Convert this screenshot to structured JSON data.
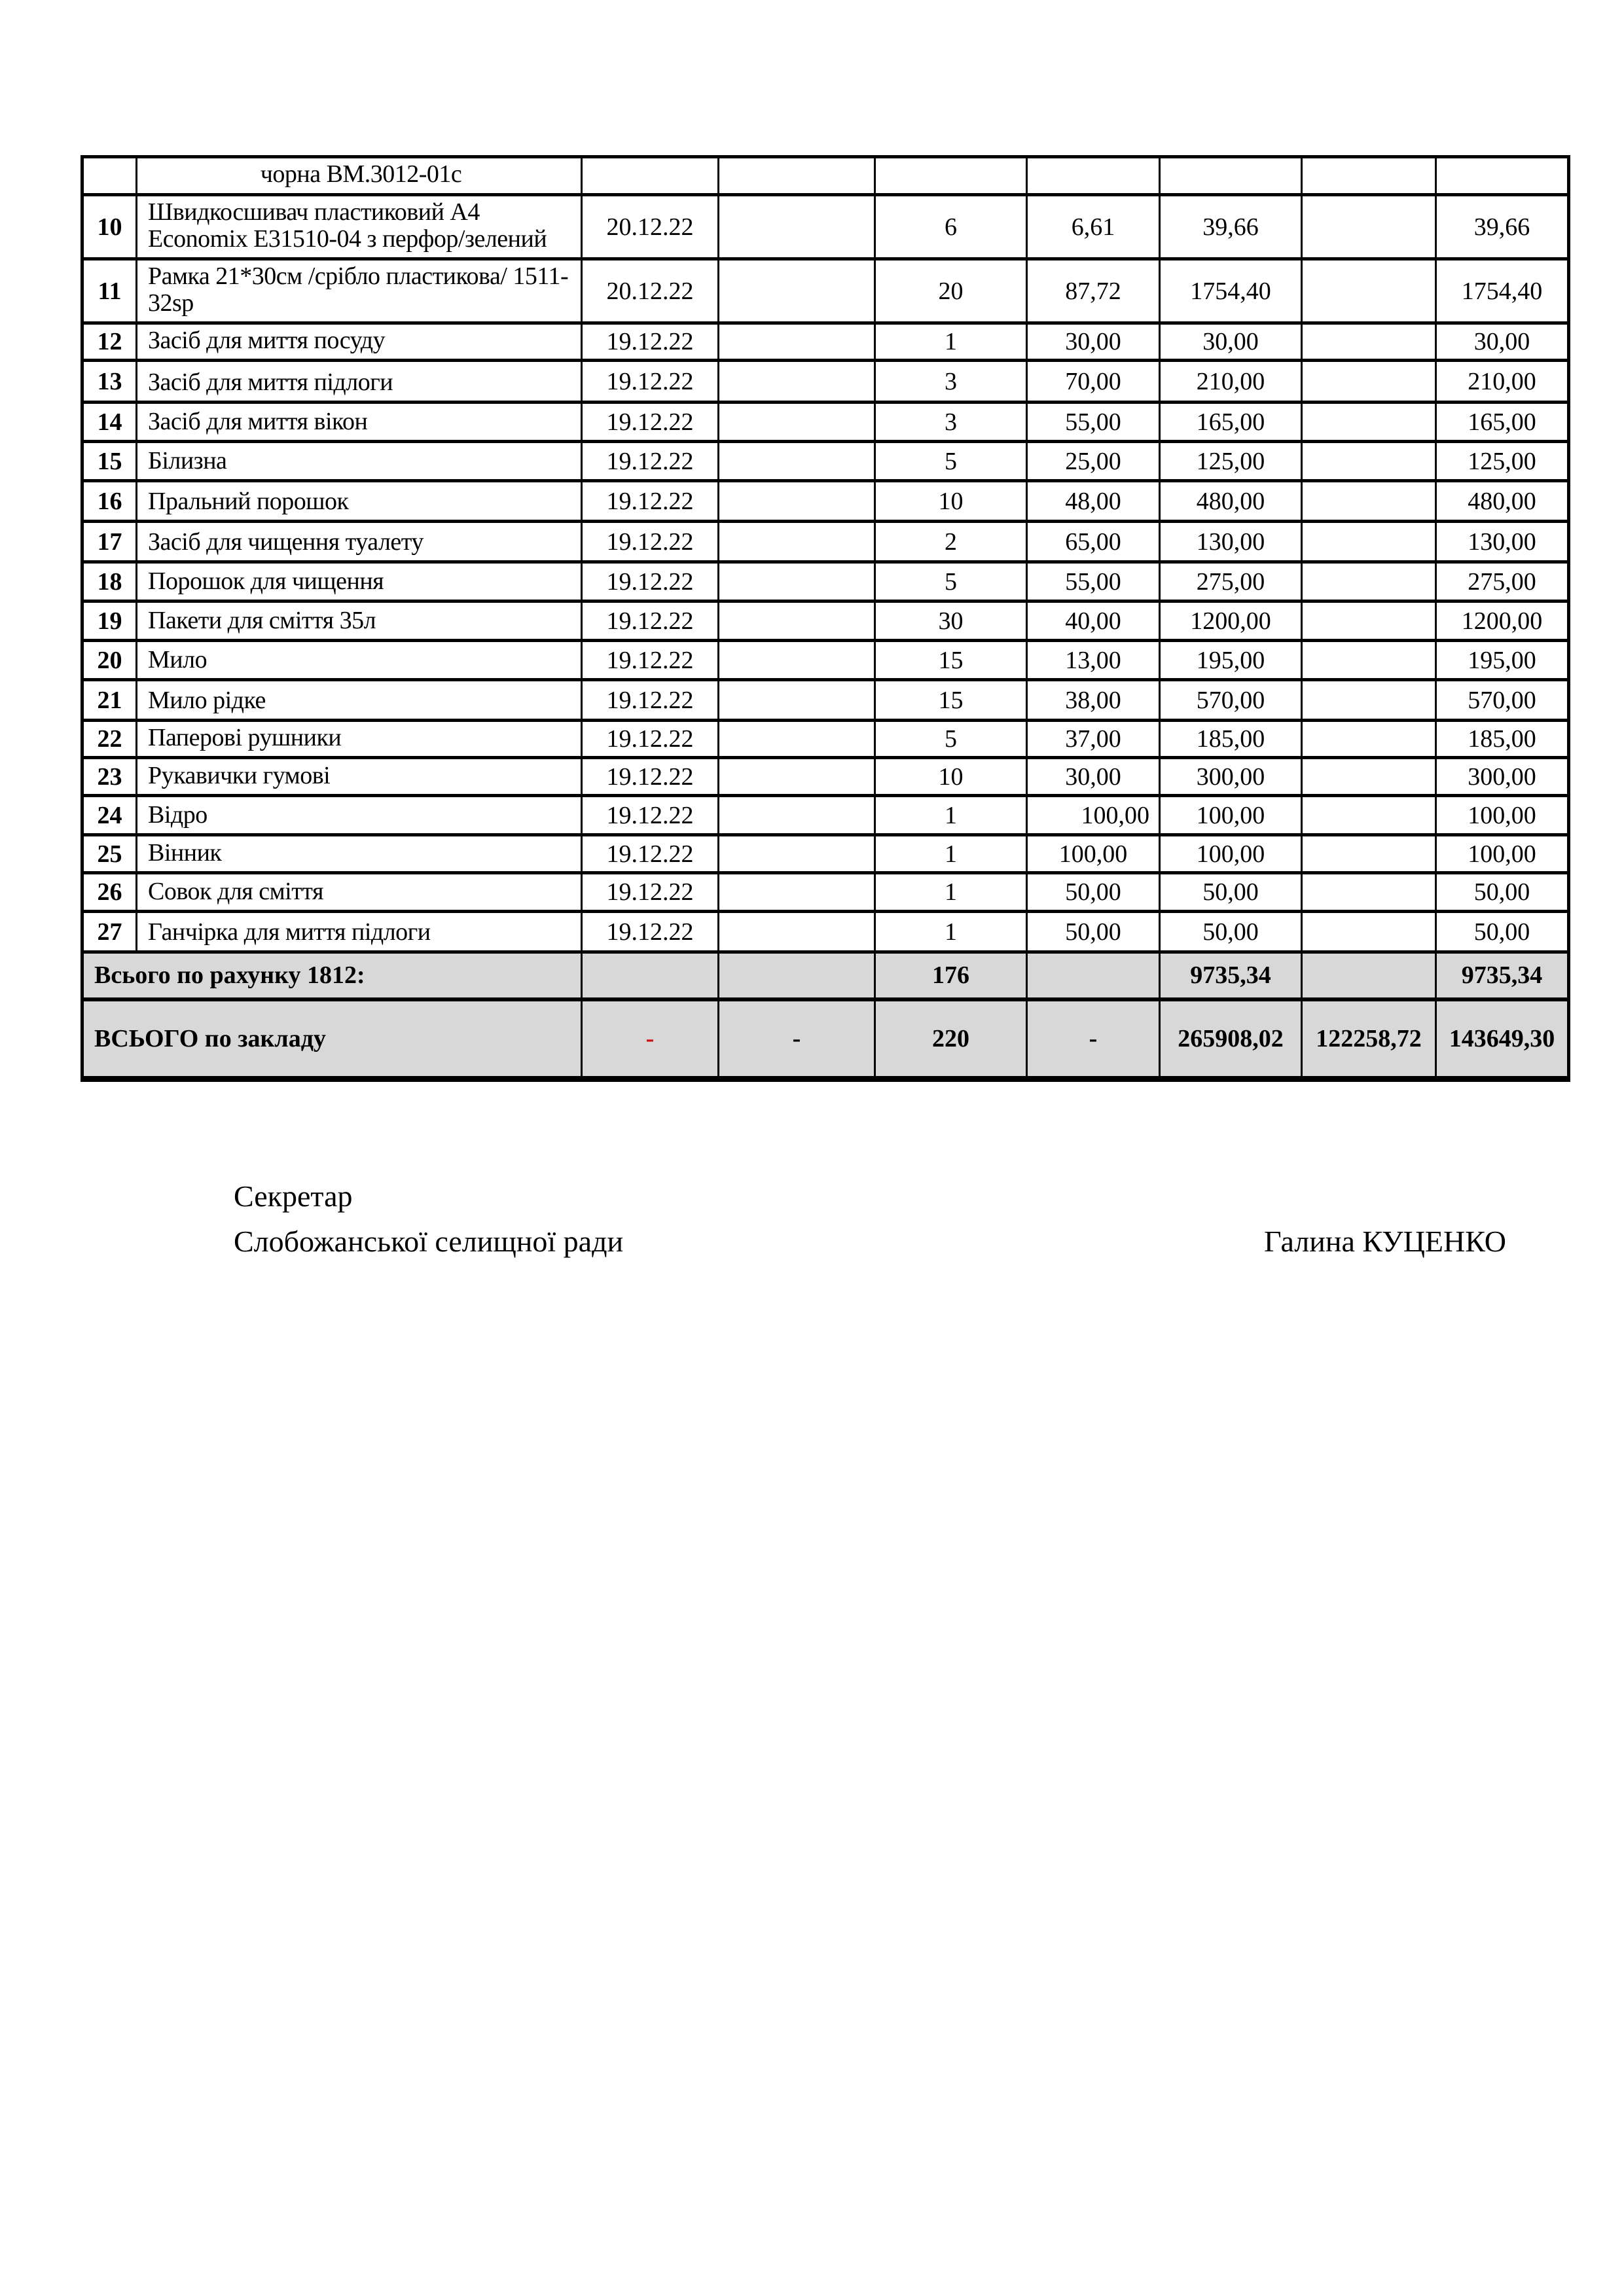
{
  "table": {
    "partial_row": {
      "desc": "чорна ВМ.3012-01с"
    },
    "rows": [
      {
        "num": "10",
        "desc": "Швидкосшивач пластиковий А4 Economix Е31510-04 з перфор/зелений",
        "date": "20.12.22",
        "qty": "6",
        "price": "6,61",
        "sum": "39,66",
        "total": "39,66"
      },
      {
        "num": "11",
        "desc": "Рамка 21*30см /срібло пластикова/ 1511-32sp",
        "date": "20.12.22",
        "qty": "20",
        "price": "87,72",
        "sum": "1754,40",
        "total": "1754,40"
      },
      {
        "num": "12",
        "desc": "Засіб для миття посуду",
        "date": "19.12.22",
        "qty": "1",
        "price": "30,00",
        "sum": "30,00",
        "total": "30,00"
      },
      {
        "num": "13",
        "desc": "Засіб для миття підлоги",
        "date": "19.12.22",
        "qty": "3",
        "price": "70,00",
        "sum": "210,00",
        "total": "210,00"
      },
      {
        "num": "14",
        "desc": "Засіб для миття вікон",
        "date": "19.12.22",
        "qty": "3",
        "price": "55,00",
        "sum": "165,00",
        "total": "165,00"
      },
      {
        "num": "15",
        "desc": "Білизна",
        "date": "19.12.22",
        "qty": "5",
        "price": "25,00",
        "sum": "125,00",
        "total": "125,00"
      },
      {
        "num": "16",
        "desc": "Пральний порошок",
        "date": "19.12.22",
        "qty": "10",
        "price": "48,00",
        "sum": "480,00",
        "total": "480,00"
      },
      {
        "num": "17",
        "desc": "Засіб для чищення туалету",
        "date": "19.12.22",
        "qty": "2",
        "price": "65,00",
        "sum": "130,00",
        "total": "130,00"
      },
      {
        "num": "18",
        "desc": "Порошок для чищення",
        "date": "19.12.22",
        "qty": "5",
        "price": "55,00",
        "sum": "275,00",
        "total": "275,00"
      },
      {
        "num": "19",
        "desc": "Пакети для сміття 35л",
        "date": "19.12.22",
        "qty": "30",
        "price": "40,00",
        "sum": "1200,00",
        "total": "1200,00"
      },
      {
        "num": "20",
        "desc": "Мило",
        "date": "19.12.22",
        "qty": "15",
        "price": "13,00",
        "sum": "195,00",
        "total": "195,00"
      },
      {
        "num": "21",
        "desc": "Мило рідке",
        "date": "19.12.22",
        "qty": "15",
        "price": "38,00",
        "sum": "570,00",
        "total": "570,00"
      },
      {
        "num": "22",
        "desc": "Паперові рушники",
        "date": "19.12.22",
        "qty": "5",
        "price": "37,00",
        "sum": "185,00",
        "total": "185,00"
      },
      {
        "num": "23",
        "desc": "Рукавички гумові",
        "date": "19.12.22",
        "qty": "10",
        "price": "30,00",
        "sum": "300,00",
        "total": "300,00"
      },
      {
        "num": "24",
        "desc": "Відро",
        "date": "19.12.22",
        "qty": "1",
        "price": "100,00",
        "sum": "100,00",
        "total": "100,00"
      },
      {
        "num": "25",
        "desc": "Вінник",
        "date": "19.12.22",
        "qty": "1",
        "price": "100,00",
        "sum": "100,00",
        "total": "100,00"
      },
      {
        "num": "26",
        "desc": "Совок для сміття",
        "date": "19.12.22",
        "qty": "1",
        "price": "50,00",
        "sum": "50,00",
        "total": "50,00"
      },
      {
        "num": "27",
        "desc": "Ганчірка для миття підлоги",
        "date": "19.12.22",
        "qty": "1",
        "price": "50,00",
        "sum": "50,00",
        "total": "50,00"
      }
    ],
    "subtotal": {
      "label": "Всього по рахунку 1812:",
      "qty": "176",
      "sum": "9735,34",
      "total": "9735,34"
    },
    "grand_total": {
      "label": "ВСЬОГО по закладу",
      "date": "-",
      "col4": "-",
      "qty": "220",
      "price": "-",
      "sum": "265908,02",
      "col8": "122258,72",
      "total": "143649,30"
    }
  },
  "signature": {
    "role_line1": "Секретар",
    "role_line2": "Слобожанської селищної ради",
    "name": "Галина КУЦЕНКО"
  },
  "colors": {
    "total_row_bg": "#d8d8d8",
    "red_dash": "#cc1111",
    "border": "#000000"
  }
}
